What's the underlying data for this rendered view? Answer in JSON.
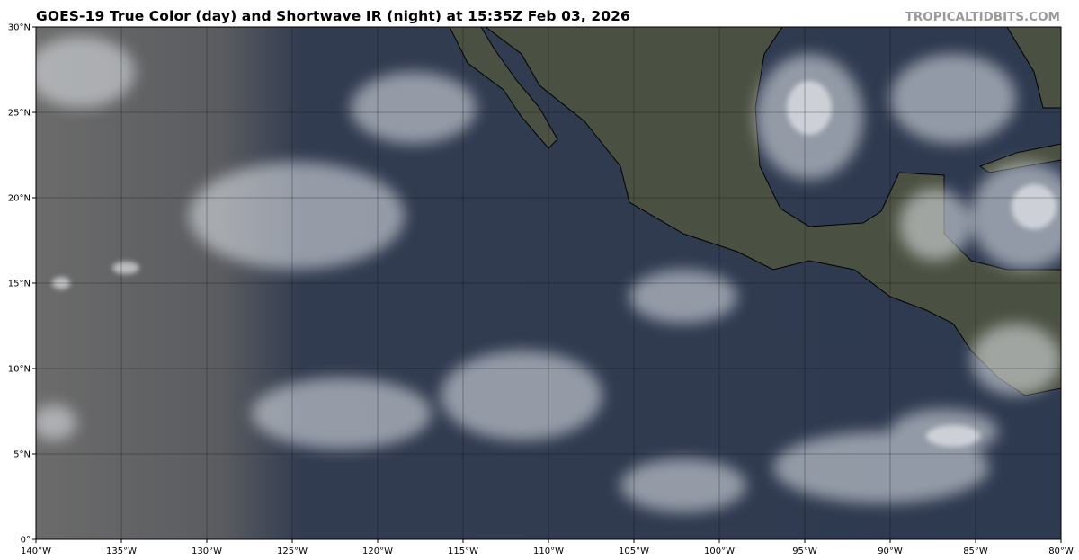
{
  "header": {
    "title": "GOES-19 True Color (day) and Shortwave IR (night) at 15:35Z Feb 03, 2026",
    "credit": "TROPICALTIDBITS.COM"
  },
  "map": {
    "projection": "equirectangular",
    "lon_range": [
      -140,
      -80
    ],
    "lat_range": [
      0,
      30
    ],
    "grid": true,
    "lon_ticks": [
      {
        "value": -140,
        "label": "140°W"
      },
      {
        "value": -135,
        "label": "135°W"
      },
      {
        "value": -130,
        "label": "130°W"
      },
      {
        "value": -125,
        "label": "125°W"
      },
      {
        "value": -120,
        "label": "120°W"
      },
      {
        "value": -115,
        "label": "115°W"
      },
      {
        "value": -110,
        "label": "110°W"
      },
      {
        "value": -105,
        "label": "105°W"
      },
      {
        "value": -100,
        "label": "100°W"
      },
      {
        "value": -95,
        "label": "95°W"
      },
      {
        "value": -90,
        "label": "90°W"
      },
      {
        "value": -85,
        "label": "85°W"
      },
      {
        "value": -80,
        "label": "80°W"
      }
    ],
    "lat_ticks": [
      {
        "value": 0,
        "label": "0°"
      },
      {
        "value": 5,
        "label": "5°N"
      },
      {
        "value": 10,
        "label": "10°N"
      },
      {
        "value": 15,
        "label": "15°N"
      },
      {
        "value": 20,
        "label": "20°N"
      },
      {
        "value": 25,
        "label": "25°N"
      },
      {
        "value": 30,
        "label": "30°N"
      }
    ],
    "colors": {
      "ocean": "#2e3a50",
      "land": "#4b5142",
      "night_side": "#6a6a6a",
      "cloud": "#e8ecf0",
      "coastline": "#000000"
    }
  }
}
